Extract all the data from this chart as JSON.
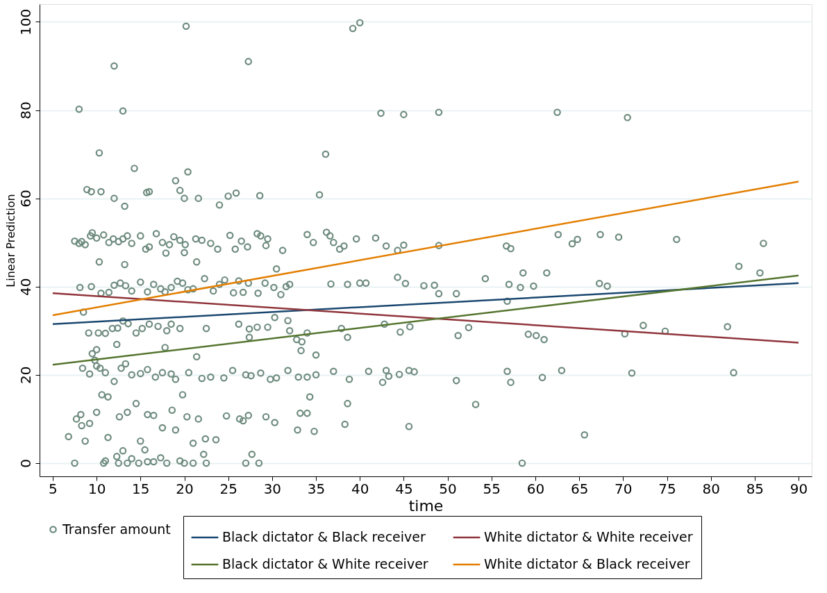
{
  "chart_data": {
    "type": "scatter",
    "xlabel": "time",
    "ylabel": "Linear Prediction",
    "xlim": [
      3.5,
      91.5
    ],
    "ylim": [
      -3,
      104
    ],
    "xticks": [
      5,
      10,
      15,
      20,
      25,
      30,
      35,
      40,
      45,
      50,
      55,
      60,
      65,
      70,
      75,
      80,
      85,
      90
    ],
    "yticks": [
      0,
      20,
      40,
      60,
      80,
      100
    ],
    "grid": "y",
    "legend": "bottom",
    "series": [
      {
        "name": "Black dictator & Black receiver",
        "type": "line",
        "color": "#1a476f",
        "x": [
          5,
          90
        ],
        "values": [
          31.5,
          40.8
        ]
      },
      {
        "name": "White dictator & White receiver",
        "type": "line",
        "color": "#90353b",
        "x": [
          5,
          90
        ],
        "values": [
          38.5,
          27.3
        ]
      },
      {
        "name": "Black dictator & White receiver",
        "type": "line",
        "color": "#55752f",
        "x": [
          5,
          90
        ],
        "values": [
          22.3,
          42.5
        ]
      },
      {
        "name": "White dictator &  Black receiver",
        "type": "line",
        "color": "#e37e00",
        "x": [
          5,
          90
        ],
        "values": [
          33.5,
          63.8
        ]
      },
      {
        "name": "Transfer amount",
        "marker": "circle",
        "color": "#6e8b7f",
        "x": [
          8,
          12,
          13,
          20.2,
          27.3,
          39.2,
          40,
          42.4,
          45,
          49,
          62.5,
          70.5,
          8.9,
          9.4,
          10.5,
          12,
          13.2,
          14.3,
          15.7,
          16,
          19,
          19.5,
          20,
          20.4,
          21.6,
          24,
          25,
          25.9,
          28.6,
          35.4,
          36.1,
          10.3,
          7.5,
          8,
          8.3,
          8.7,
          9.3,
          9.5,
          10,
          10.8,
          11.4,
          11.9,
          12.5,
          13,
          13.5,
          14,
          15,
          15.6,
          16,
          16.8,
          17.5,
          18.3,
          18.8,
          19.5,
          20.1,
          21.3,
          22,
          23,
          23.8,
          25.2,
          25.8,
          26.5,
          27.2,
          28.3,
          28.7,
          29.5,
          29.3,
          31.2,
          34,
          34.7,
          36.2,
          36.6,
          37,
          37.7,
          38.2,
          39.6,
          41.8,
          43,
          44.3,
          45,
          49,
          56.7,
          57.2,
          62.6,
          64.2,
          64.8,
          67.4,
          69.5,
          76.1,
          86,
          10.3,
          13.2,
          20,
          21.4,
          17.9,
          8.1,
          9.4,
          10.5,
          11.4,
          12,
          12.7,
          13.3,
          14,
          15,
          15.8,
          16.5,
          17.3,
          17.8,
          18.5,
          19.2,
          19.8,
          20.4,
          21,
          22.3,
          23.3,
          24,
          24.6,
          25.6,
          26.2,
          26.7,
          27.3,
          28.4,
          29.2,
          30.2,
          31,
          31.6,
          30.5,
          32,
          36.7,
          38.6,
          40,
          40.7,
          44.3,
          45.2,
          47.3,
          48.5,
          49,
          51,
          54.3,
          57,
          58.3,
          58.6,
          59.8,
          61.3,
          67.3,
          68.2,
          56.8,
          8.5,
          9.1,
          10.2,
          11,
          11.8,
          12.4,
          13,
          13.6,
          14.5,
          15.2,
          16,
          17,
          18,
          18.5,
          19.5,
          22.5,
          26.2,
          27.4,
          28.3,
          29.5,
          30.3,
          31.8,
          32,
          33.4,
          34,
          37.9,
          38.6,
          42.8,
          44.6,
          45.7,
          51.2,
          52.4,
          59.2,
          60.1,
          61,
          70.2,
          72.3,
          74.8,
          81.9,
          83.2,
          85.6,
          9.5,
          10,
          9.8,
          12.3,
          17.8,
          21.4,
          27.4,
          32.8,
          35,
          33.3,
          8.4,
          9.2,
          10,
          10.4,
          11,
          12,
          12.8,
          13.3,
          14,
          15,
          15.8,
          16.7,
          17.5,
          18.5,
          19,
          20.5,
          22,
          23,
          24.5,
          25.5,
          27,
          27.6,
          28.7,
          29.8,
          30.5,
          31.8,
          33,
          34,
          35,
          37,
          38.8,
          41,
          42.6,
          43,
          43.3,
          44.5,
          45.6,
          46.2,
          51,
          56.8,
          57.2,
          60.8,
          63,
          71,
          82.6,
          6.8,
          7.7,
          8.2,
          8.3,
          8.7,
          9.2,
          10,
          10.6,
          11.3,
          11.3,
          12.6,
          13.5,
          14.5,
          15,
          15.8,
          16.5,
          17.5,
          18.6,
          19,
          19.8,
          20.3,
          21,
          21.6,
          22.4,
          23.6,
          24.8,
          26.3,
          26.7,
          27.3,
          29.3,
          30.3,
          32.9,
          33.2,
          34,
          34.3,
          34.8,
          38.3,
          38.6,
          45.6,
          53.2,
          65.6,
          12.3,
          13,
          14,
          15.5,
          17.3,
          19.5,
          22.2,
          27.7,
          7.5,
          10.8,
          11,
          12.5,
          13.5,
          14.8,
          15.8,
          16.5,
          18,
          20,
          21,
          22.5,
          27,
          28.5,
          58.5
        ],
        "values": [
          80.2,
          90,
          79.8,
          99,
          91,
          98.5,
          99.8,
          79.3,
          79,
          79.5,
          79.5,
          78.3,
          62,
          61.5,
          61.5,
          60,
          58.2,
          66.8,
          61.3,
          61.5,
          64,
          61.8,
          60,
          66,
          60,
          58.5,
          60.5,
          61.2,
          60.6,
          60.8,
          70,
          70.3,
          50.3,
          49.8,
          50.2,
          49.5,
          51.5,
          52.2,
          51,
          51.7,
          50,
          50.8,
          50.2,
          50.8,
          51.5,
          49.8,
          51.5,
          48.5,
          49,
          52,
          50,
          49.5,
          51.3,
          50.5,
          49.5,
          50.8,
          50.5,
          49.8,
          48.5,
          51.6,
          48.5,
          50.3,
          49,
          52,
          51.5,
          50.8,
          49.3,
          48.2,
          51.8,
          50,
          52.3,
          51.5,
          50,
          48.5,
          49.2,
          50.8,
          51,
          49.2,
          48.2,
          49.4,
          49.3,
          49.2,
          48.6,
          51.8,
          49.7,
          50.7,
          51.8,
          51.2,
          50.7,
          49.8,
          45.6,
          45,
          47.7,
          45.6,
          47.6,
          39.8,
          40,
          38.5,
          38.7,
          40.3,
          40.8,
          40.2,
          39,
          41,
          38.8,
          40.5,
          39.5,
          38.8,
          39.8,
          41.2,
          40.8,
          39.3,
          39.5,
          41.8,
          39,
          40.5,
          41.5,
          38.6,
          41.3,
          38.7,
          40.8,
          38.5,
          40.8,
          39.8,
          38.2,
          40,
          44,
          40.5,
          40.6,
          40.5,
          40.8,
          40.8,
          42.1,
          40.7,
          40.2,
          40.3,
          38.4,
          38.4,
          41.8,
          40.5,
          39.8,
          43.1,
          40.1,
          43.1,
          40.7,
          40.1,
          36.7,
          34.2,
          29.5,
          29.5,
          29.4,
          30.5,
          30.6,
          32.2,
          31.6,
          29.5,
          30.5,
          31.5,
          31,
          30,
          31.5,
          30.5,
          30.5,
          31.5,
          30.4,
          30.8,
          30.8,
          33,
          32.3,
          30,
          27.5,
          29.5,
          30.5,
          28.5,
          31.5,
          29.7,
          30.9,
          28.9,
          30.7,
          29.2,
          28.9,
          28,
          29.3,
          31.2,
          29.9,
          30.9,
          44.6,
          43.1,
          24.8,
          25.7,
          23.3,
          26.9,
          26.2,
          24.1,
          28.5,
          28,
          24.5,
          25.5,
          21.5,
          20.2,
          22,
          21.5,
          20.5,
          18.5,
          21.5,
          22.5,
          20,
          20.3,
          21.2,
          19.5,
          20.5,
          20.2,
          19,
          20.5,
          19.2,
          19.5,
          19.3,
          21,
          20,
          19.8,
          20.4,
          19,
          19.3,
          21,
          19.5,
          19.5,
          20,
          20.8,
          19,
          20.8,
          18.3,
          21,
          19.7,
          20.1,
          21,
          20.7,
          18.7,
          20.8,
          18.3,
          19.4,
          21,
          20.4,
          20.5,
          6,
          10,
          11,
          8.5,
          5,
          9,
          11.5,
          15.5,
          15,
          5.8,
          10.5,
          11.5,
          13.5,
          5,
          11,
          10.8,
          8,
          12,
          7.5,
          15.5,
          10.5,
          4.5,
          10,
          5.5,
          5.3,
          10.7,
          10,
          9.6,
          10.8,
          10.5,
          9.2,
          7.5,
          11.3,
          11.3,
          15,
          7.2,
          8.8,
          13.5,
          8.3,
          13.3,
          6.4,
          1.5,
          2.8,
          1,
          3,
          1.2,
          0.5,
          2,
          2,
          0,
          0,
          0.5,
          0,
          0,
          0,
          0.3,
          0.3,
          0,
          0,
          0,
          0,
          0,
          0,
          0
        ]
      }
    ]
  }
}
